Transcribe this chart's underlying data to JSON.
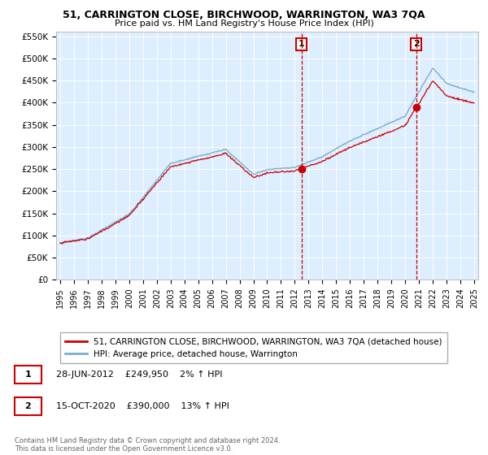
{
  "title1": "51, CARRINGTON CLOSE, BIRCHWOOD, WARRINGTON, WA3 7QA",
  "title2": "Price paid vs. HM Land Registry's House Price Index (HPI)",
  "ylabel_ticks": [
    "£0",
    "£50K",
    "£100K",
    "£150K",
    "£200K",
    "£250K",
    "£300K",
    "£350K",
    "£400K",
    "£450K",
    "£500K",
    "£550K"
  ],
  "ylabel_values": [
    0,
    50000,
    100000,
    150000,
    200000,
    250000,
    300000,
    350000,
    400000,
    450000,
    500000,
    550000
  ],
  "xlim_start": 1994.7,
  "xlim_end": 2025.3,
  "ylim_min": 0,
  "ylim_max": 560000,
  "purchase1_date": 2012.49,
  "purchase1_value": 249950,
  "purchase1_label": "1",
  "purchase2_date": 2020.79,
  "purchase2_value": 390000,
  "purchase2_label": "2",
  "annotation1_date": "28-JUN-2012",
  "annotation1_price": "£249,950",
  "annotation1_hpi": "2% ↑ HPI",
  "annotation2_date": "15-OCT-2020",
  "annotation2_price": "£390,000",
  "annotation2_hpi": "13% ↑ HPI",
  "legend1_label": "51, CARRINGTON CLOSE, BIRCHWOOD, WARRINGTON, WA3 7QA (detached house)",
  "legend2_label": "HPI: Average price, detached house, Warrington",
  "line_color_red": "#cc0000",
  "line_color_blue": "#7aadcc",
  "marker_color_red": "#cc0000",
  "bg_color": "#ddeeff",
  "grid_color": "#ffffff",
  "footnote": "Contains HM Land Registry data © Crown copyright and database right 2024.\nThis data is licensed under the Open Government Licence v3.0."
}
